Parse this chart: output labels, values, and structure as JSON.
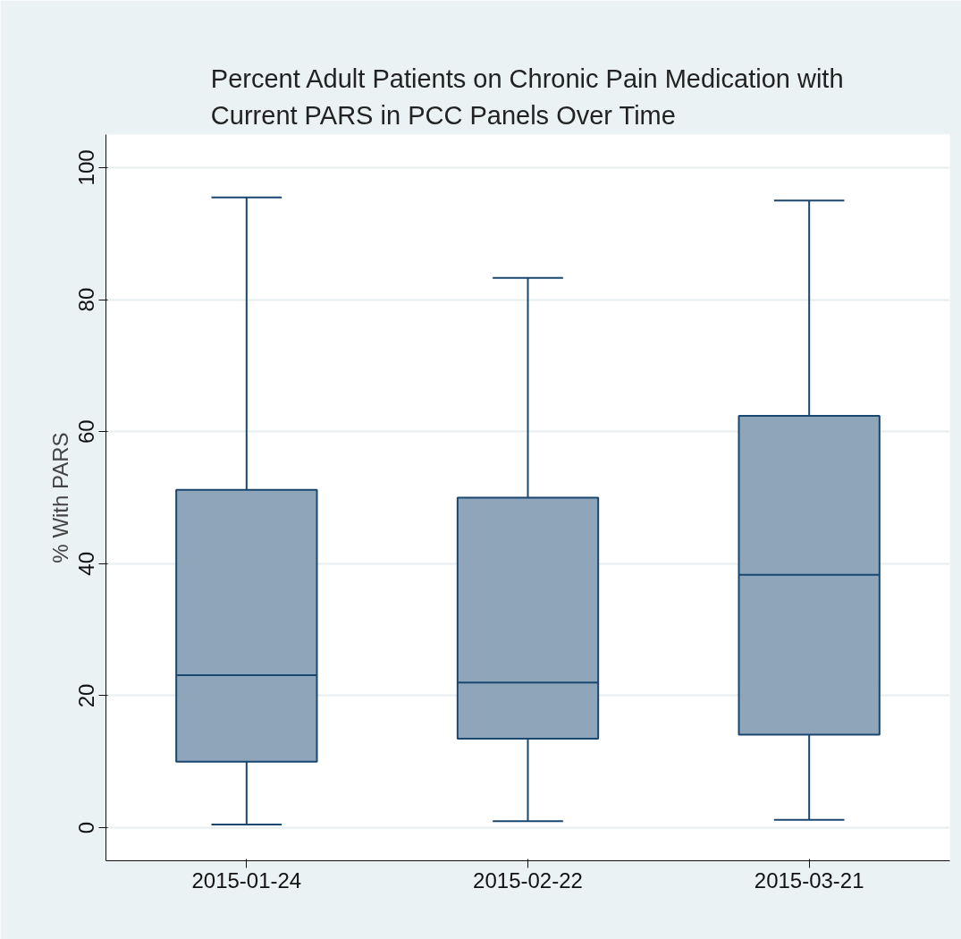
{
  "chart_data": {
    "type": "box",
    "title": "Percent Adult Patients on Chronic Pain Medication with\nCurrent PARS in PCC Panels Over Time",
    "ylabel": "% With PARS",
    "categories": [
      "2015-01-24",
      "2015-02-22",
      "2015-03-21"
    ],
    "boxes": [
      {
        "low": 0.5,
        "q1": 10,
        "median": 23.1,
        "q3": 51.2,
        "high": 95.5
      },
      {
        "low": 1,
        "q1": 13.5,
        "median": 22,
        "q3": 50,
        "high": 83.3
      },
      {
        "low": 1.2,
        "q1": 14.1,
        "median": 38.3,
        "q3": 62.4,
        "high": 95
      }
    ],
    "color": "#8ea5ba",
    "ylim": [
      -5,
      105
    ],
    "yticks": [
      0,
      20,
      40,
      60,
      80,
      100
    ],
    "grid": "y"
  }
}
